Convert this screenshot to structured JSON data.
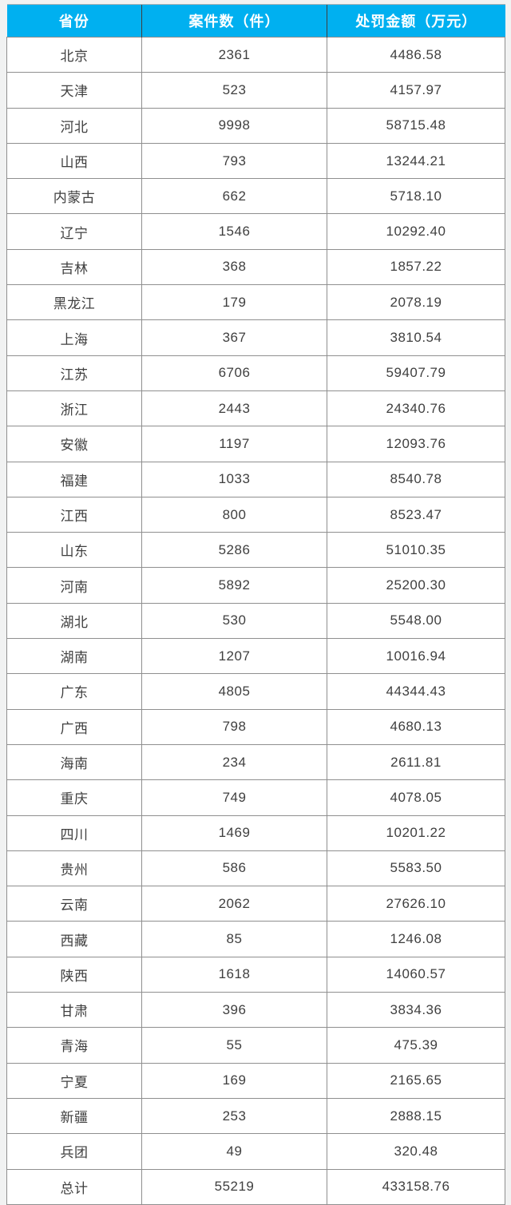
{
  "chart_data": {
    "type": "table",
    "columns": [
      "省份",
      "案件数（件）",
      "处罚金额（万元）"
    ],
    "rows": [
      [
        "北京",
        "2361",
        "4486.58"
      ],
      [
        "天津",
        "523",
        "4157.97"
      ],
      [
        "河北",
        "9998",
        "58715.48"
      ],
      [
        "山西",
        "793",
        "13244.21"
      ],
      [
        "内蒙古",
        "662",
        "5718.10"
      ],
      [
        "辽宁",
        "1546",
        "10292.40"
      ],
      [
        "吉林",
        "368",
        "1857.22"
      ],
      [
        "黑龙江",
        "179",
        "2078.19"
      ],
      [
        "上海",
        "367",
        "3810.54"
      ],
      [
        "江苏",
        "6706",
        "59407.79"
      ],
      [
        "浙江",
        "2443",
        "24340.76"
      ],
      [
        "安徽",
        "1197",
        "12093.76"
      ],
      [
        "福建",
        "1033",
        "8540.78"
      ],
      [
        "江西",
        "800",
        "8523.47"
      ],
      [
        "山东",
        "5286",
        "51010.35"
      ],
      [
        "河南",
        "5892",
        "25200.30"
      ],
      [
        "湖北",
        "530",
        "5548.00"
      ],
      [
        "湖南",
        "1207",
        "10016.94"
      ],
      [
        "广东",
        "4805",
        "44344.43"
      ],
      [
        "广西",
        "798",
        "4680.13"
      ],
      [
        "海南",
        "234",
        "2611.81"
      ],
      [
        "重庆",
        "749",
        "4078.05"
      ],
      [
        "四川",
        "1469",
        "10201.22"
      ],
      [
        "贵州",
        "586",
        "5583.50"
      ],
      [
        "云南",
        "2062",
        "27626.10"
      ],
      [
        "西藏",
        "85",
        "1246.08"
      ],
      [
        "陕西",
        "1618",
        "14060.57"
      ],
      [
        "甘肃",
        "396",
        "3834.36"
      ],
      [
        "青海",
        "55",
        "475.39"
      ],
      [
        "宁夏",
        "169",
        "2165.65"
      ],
      [
        "新疆",
        "253",
        "2888.15"
      ],
      [
        "兵团",
        "49",
        "320.48"
      ],
      [
        "总计",
        "55219",
        "433158.76"
      ]
    ]
  },
  "colors": {
    "header_bg": "#00b0f0",
    "header_text": "#ffffff",
    "header_separator": "#3f3f3f",
    "grid": "#8f8f8f",
    "body_text": "#3f3f3f",
    "page_bg": "#f1f2f2"
  }
}
